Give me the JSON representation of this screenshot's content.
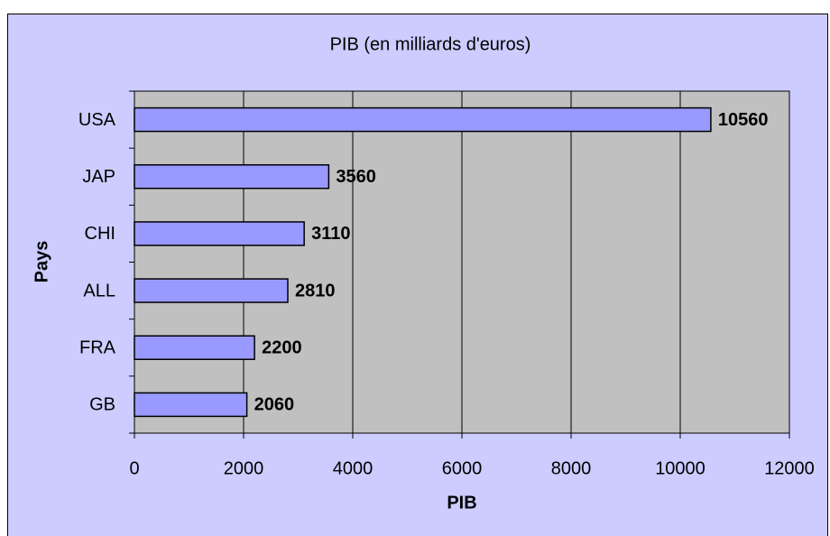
{
  "chart_data": {
    "type": "bar",
    "orientation": "horizontal",
    "title": "PIB (en milliards d'euros)",
    "x_label": "PIB",
    "y_label": "Pays",
    "categories": [
      "USA",
      "JAP",
      "CHI",
      "ALL",
      "FRA",
      "GB"
    ],
    "values": [
      10560,
      3560,
      3110,
      2810,
      2200,
      2060
    ],
    "color": "#9999ff",
    "xlim": [
      0,
      12000
    ],
    "xticks": [
      0,
      2000,
      4000,
      6000,
      8000,
      10000,
      12000
    ],
    "grid": true
  }
}
